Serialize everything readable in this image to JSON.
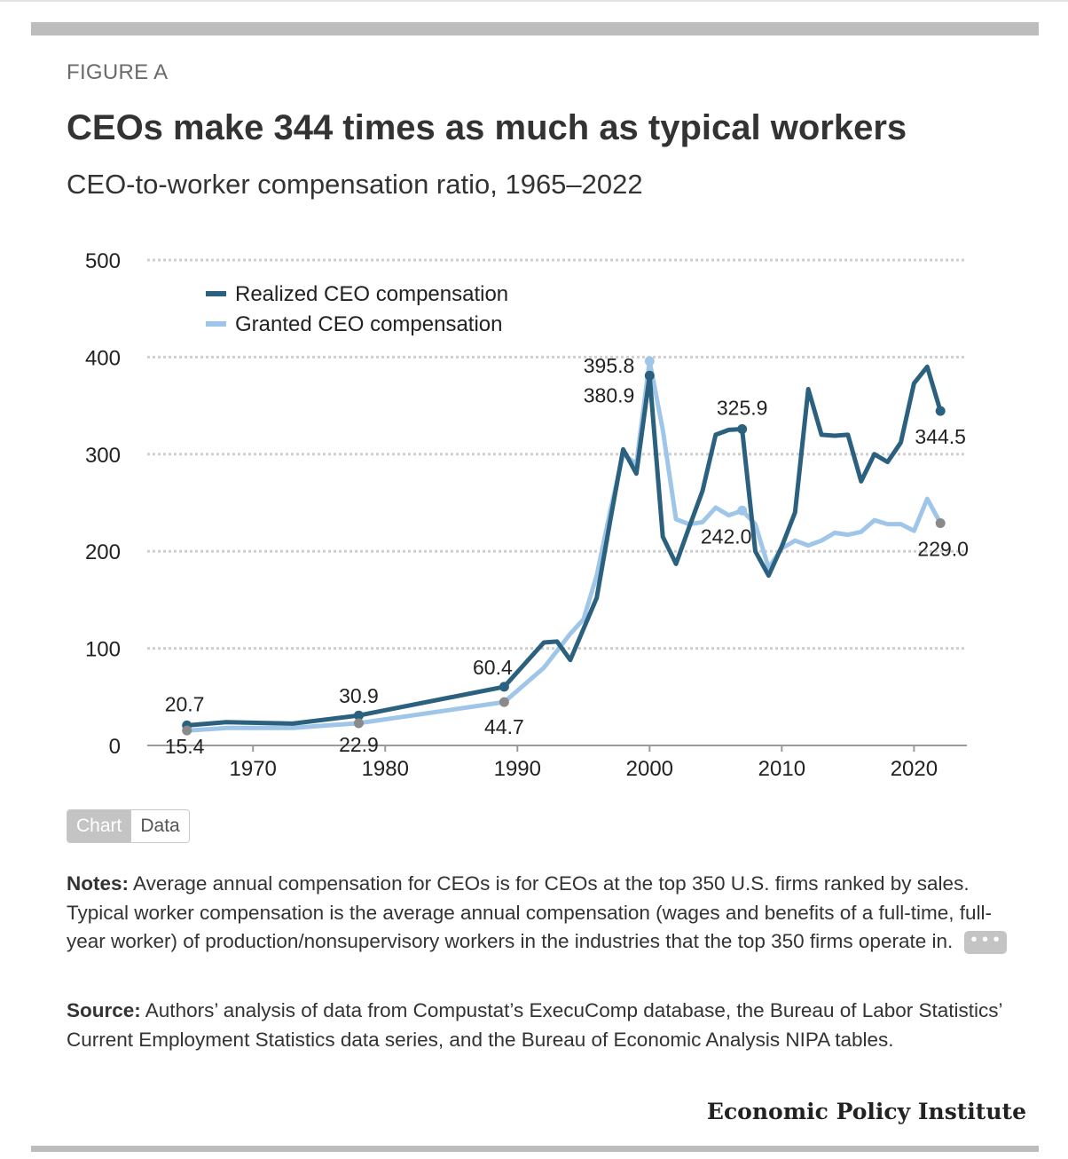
{
  "figure_label": "FIGURE A",
  "title": "CEOs make 344 times as much as typical workers",
  "subtitle": "CEO-to-worker compensation ratio, 1965–2022",
  "toggle": {
    "chart_label": "Chart",
    "data_label": "Data"
  },
  "notes": {
    "label": "Notes:",
    "text": " Average annual compensation for CEOs is for CEOs at the top 350 U.S. firms ranked by sales. Typical worker compensation is the average annual compensation (wages and benefits of a full-time, full-year worker) of production/nonsupervisory workers in the industries that the top 350 firms operate in.",
    "more": "• • •"
  },
  "source": {
    "label": "Source:",
    "text": " Authors’ analysis of data from Compustat’s ExecuComp database, the Bureau of Labor Statistics’ Current Employment Statistics data series, and the Bureau of Economic Analysis NIPA tables."
  },
  "brand": "Economic Policy Institute",
  "colors": {
    "realized": "#2b617f",
    "granted": "#9fc6e8",
    "marker_gray": "#8a8a8a"
  },
  "chart_data": {
    "type": "line",
    "xlim": [
      1962,
      2024
    ],
    "ylim": [
      0,
      500
    ],
    "yticks": [
      0,
      100,
      200,
      300,
      400,
      500
    ],
    "xticks": [
      1970,
      1980,
      1990,
      2000,
      2010,
      2020
    ],
    "grid": true,
    "legend_position": "top-left",
    "series": [
      {
        "name": "Realized CEO compensation",
        "x": [
          1965,
          1968,
          1973,
          1978,
          1989,
          1992,
          1993,
          1994,
          1995,
          1996,
          1997,
          1998,
          1999,
          2000,
          2001,
          2002,
          2003,
          2004,
          2005,
          2006,
          2007,
          2008,
          2009,
          2010,
          2011,
          2012,
          2013,
          2014,
          2015,
          2016,
          2017,
          2018,
          2019,
          2020,
          2021,
          2022
        ],
        "y": [
          20.7,
          24,
          22.5,
          30.9,
          60.4,
          106,
          107,
          88,
          120,
          152,
          230,
          305,
          280,
          380.9,
          215,
          187,
          225,
          262,
          320,
          325,
          325.9,
          200,
          175,
          205,
          240,
          367,
          320,
          319,
          320,
          272,
          300,
          292,
          312,
          373,
          390,
          344.5
        ]
      },
      {
        "name": "Granted CEO compensation",
        "x": [
          1965,
          1968,
          1973,
          1978,
          1989,
          1992,
          1994,
          1995,
          1996,
          1997,
          1998,
          1999,
          2000,
          2001,
          2002,
          2003,
          2004,
          2005,
          2006,
          2007,
          2008,
          2009,
          2010,
          2011,
          2012,
          2013,
          2014,
          2015,
          2016,
          2017,
          2018,
          2019,
          2020,
          2021,
          2022
        ],
        "y": [
          15.4,
          18,
          18,
          22.9,
          44.7,
          80,
          115,
          130,
          175,
          240,
          300,
          290,
          395.8,
          325,
          233,
          228,
          230,
          245,
          237,
          242,
          228,
          183,
          203,
          211,
          206,
          211,
          219,
          217,
          220,
          232,
          228,
          228,
          221,
          254,
          229
        ]
      }
    ],
    "annotations": [
      {
        "series": 0,
        "x": 1965,
        "y": 20.7,
        "label": "20.7"
      },
      {
        "series": 0,
        "x": 1978,
        "y": 30.9,
        "label": "30.9"
      },
      {
        "series": 0,
        "x": 1989,
        "y": 60.4,
        "label": "60.4"
      },
      {
        "series": 0,
        "x": 2000,
        "y": 380.9,
        "label": "380.9"
      },
      {
        "series": 0,
        "x": 2007,
        "y": 325.9,
        "label": "325.9"
      },
      {
        "series": 0,
        "x": 2022,
        "y": 344.5,
        "label": "344.5"
      },
      {
        "series": 1,
        "x": 1965,
        "y": 15.4,
        "label": "15.4"
      },
      {
        "series": 1,
        "x": 1978,
        "y": 22.9,
        "label": "22.9"
      },
      {
        "series": 1,
        "x": 1989,
        "y": 44.7,
        "label": "44.7"
      },
      {
        "series": 1,
        "x": 2000,
        "y": 395.8,
        "label": "395.8"
      },
      {
        "series": 1,
        "x": 2007,
        "y": 242.0,
        "label": "242.0"
      },
      {
        "series": 1,
        "x": 2022,
        "y": 229.0,
        "label": "229.0"
      }
    ]
  }
}
